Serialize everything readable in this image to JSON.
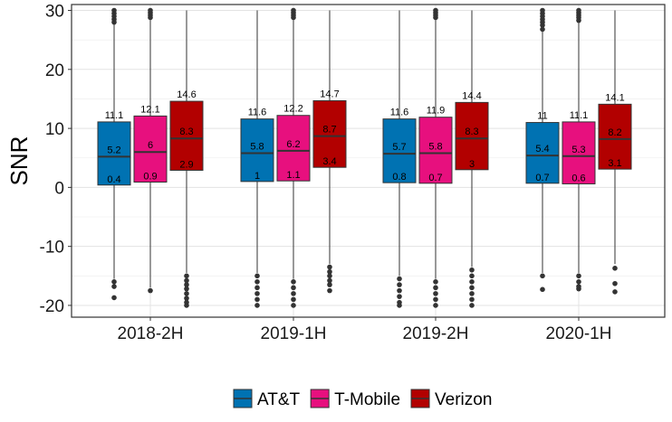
{
  "chart_data": {
    "type": "boxplot",
    "title": "",
    "xlabel": "",
    "ylabel": "SNR",
    "ylim": [
      -22,
      31
    ],
    "yticks": [
      -20,
      -10,
      0,
      10,
      20,
      30
    ],
    "grid": true,
    "legend_position": "bottom",
    "categories": [
      "2018-2H",
      "2019-1H",
      "2019-2H",
      "2020-1H"
    ],
    "series": [
      {
        "name": "AT&T",
        "color": "#0072B2",
        "boxes": [
          {
            "q1": 0.4,
            "median": 5.2,
            "q3": 11.1,
            "whisker_low": -15.5,
            "whisker_high": 27.8,
            "outliers_low": [
              -16,
              -16.8,
              -18.7
            ],
            "outliers_high": [
              28,
              28.5,
              29,
              29.5,
              30
            ],
            "labels": {
              "q1": "0.4",
              "median": "5.2",
              "q3": "11.1"
            }
          },
          {
            "q1": 1.0,
            "median": 5.8,
            "q3": 11.6,
            "whisker_low": -14.5,
            "whisker_high": 30,
            "outliers_low": [
              -15,
              -16,
              -17,
              -18,
              -19,
              -20
            ],
            "outliers_high": [],
            "labels": {
              "q1": "1",
              "median": "5.8",
              "q3": "11.6"
            }
          },
          {
            "q1": 0.8,
            "median": 5.7,
            "q3": 11.6,
            "whisker_low": -15,
            "whisker_high": 30,
            "outliers_low": [
              -15.5,
              -16.5,
              -17.5,
              -18.5,
              -19.5,
              -20
            ],
            "outliers_high": [],
            "labels": {
              "q1": "0.8",
              "median": "5.7",
              "q3": "11.6"
            }
          },
          {
            "q1": 0.7,
            "median": 5.4,
            "q3": 11.0,
            "whisker_low": -14.5,
            "whisker_high": 26.5,
            "outliers_low": [
              -15,
              -17.3
            ],
            "outliers_high": [
              26.8,
              27.5,
              28,
              28.5,
              29,
              29.5,
              30
            ],
            "labels": {
              "q1": "0.7",
              "median": "5.4",
              "q3": "11"
            }
          }
        ]
      },
      {
        "name": "T-Mobile",
        "color": "#E7107E",
        "boxes": [
          {
            "q1": 0.9,
            "median": 6.0,
            "q3": 12.1,
            "whisker_low": -17,
            "whisker_high": 28.5,
            "outliers_low": [
              -17.5
            ],
            "outliers_high": [
              28.8,
              29.2,
              29.6,
              30
            ],
            "labels": {
              "q1": "0.9",
              "median": "6",
              "q3": "12.1"
            }
          },
          {
            "q1": 1.1,
            "median": 6.2,
            "q3": 12.2,
            "whisker_low": -15.5,
            "whisker_high": 28.5,
            "outliers_low": [
              -16,
              -17,
              -18,
              -19,
              -20
            ],
            "outliers_high": [
              28.8,
              29.2,
              29.6,
              30
            ],
            "labels": {
              "q1": "1.1",
              "median": "6.2",
              "q3": "12.2"
            }
          },
          {
            "q1": 0.7,
            "median": 5.8,
            "q3": 11.9,
            "whisker_low": -15.5,
            "whisker_high": 28.5,
            "outliers_low": [
              -16,
              -17,
              -18,
              -19,
              -20
            ],
            "outliers_high": [
              28.8,
              29.2,
              29.6,
              30
            ],
            "labels": {
              "q1": "0.7",
              "median": "5.8",
              "q3": "11.9"
            }
          },
          {
            "q1": 0.6,
            "median": 5.3,
            "q3": 11.1,
            "whisker_low": -14.5,
            "whisker_high": 28,
            "outliers_low": [
              -15,
              -16,
              -16.8,
              -17.2
            ],
            "outliers_high": [
              28.3,
              28.8,
              29.2,
              29.6,
              30
            ],
            "labels": {
              "q1": "0.6",
              "median": "5.3",
              "q3": "11.1"
            }
          }
        ]
      },
      {
        "name": "Verizon",
        "color": "#B20000",
        "boxes": [
          {
            "q1": 2.9,
            "median": 8.3,
            "q3": 14.6,
            "whisker_low": -14.5,
            "whisker_high": 30,
            "outliers_low": [
              -15,
              -15.8,
              -16.5,
              -17.2,
              -18,
              -18.8,
              -19.5,
              -20
            ],
            "outliers_high": [],
            "labels": {
              "q1": "2.9",
              "median": "8.3",
              "q3": "14.6"
            }
          },
          {
            "q1": 3.4,
            "median": 8.7,
            "q3": 14.7,
            "whisker_low": -13,
            "whisker_high": 30,
            "outliers_low": [
              -13.5,
              -14.3,
              -15,
              -15.8,
              -16.5,
              -17.5
            ],
            "outliers_high": [],
            "labels": {
              "q1": "3.4",
              "median": "8.7",
              "q3": "14.7"
            }
          },
          {
            "q1": 3.0,
            "median": 8.3,
            "q3": 14.4,
            "whisker_low": -13.5,
            "whisker_high": 30,
            "outliers_low": [
              -14,
              -15,
              -16,
              -17,
              -18,
              -19,
              -20
            ],
            "outliers_high": [],
            "labels": {
              "q1": "3",
              "median": "8.3",
              "q3": "14.4"
            }
          },
          {
            "q1": 3.1,
            "median": 8.2,
            "q3": 14.1,
            "whisker_low": -13,
            "whisker_high": 30,
            "outliers_low": [
              -13.7,
              -16.3,
              -17.7
            ],
            "outliers_high": [],
            "labels": {
              "q1": "3.1",
              "median": "8.2",
              "q3": "14.1"
            }
          }
        ]
      }
    ]
  }
}
